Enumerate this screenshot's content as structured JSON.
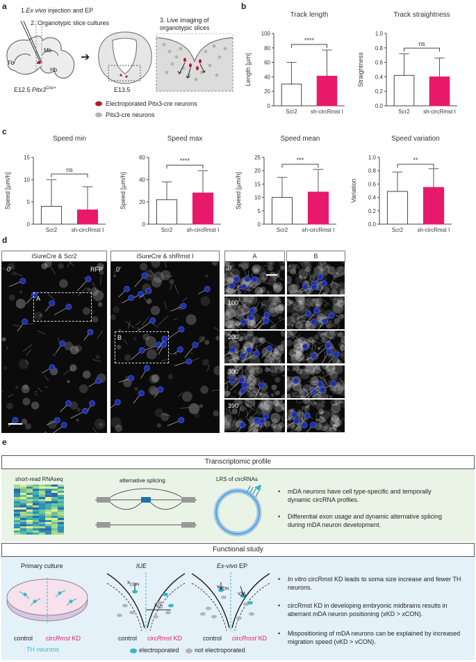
{
  "panels": {
    "a": "a",
    "b": "b",
    "c": "c",
    "d": "d",
    "e": "e"
  },
  "panel_a": {
    "step1_prefix": "1.",
    "step1_italic": "Ex vivo",
    "step1_rest": "injection and EP",
    "step2": "2. Organotypic slice cultures",
    "step3_line1": "3. Live imaging of",
    "step3_line2": "organotypic slices",
    "region_fb": "Fb",
    "region_mb": "Mb",
    "region_hb": "Hb",
    "age_e125": "E12.5",
    "genotype": "Pitx3",
    "genotype_sup": "Cre/+",
    "age_e135": "E13.5",
    "legend_red": "Electroporated Pitx3-cre neurons",
    "legend_grey": "Pitx3-cre neurons",
    "colors": {
      "red": "#b01c24",
      "grey": "#b4b4b4"
    }
  },
  "chart_data": [
    {
      "id": "track-length",
      "type": "bar",
      "title": "Track length",
      "ylabel": "Length [µm]",
      "ylim": [
        0,
        100
      ],
      "yticks": [
        0,
        20,
        40,
        60,
        80,
        100
      ],
      "categories": [
        "Scr2",
        "sh-circRmst I"
      ],
      "values": [
        30,
        41
      ],
      "errors": [
        30,
        36
      ],
      "significance": "****",
      "fill": [
        "#ffffff",
        "#e8196b"
      ]
    },
    {
      "id": "track-straightness",
      "type": "bar",
      "title": "Track straightness",
      "ylabel": "Straightness",
      "ylim": [
        0,
        1.0
      ],
      "yticks": [
        "0.0",
        "0.2",
        "0.4",
        "0.6",
        "0.8",
        "1.0"
      ],
      "categories": [
        "Scr2",
        "sh-circRmst I"
      ],
      "values": [
        0.42,
        0.4
      ],
      "errors": [
        0.3,
        0.26
      ],
      "significance": "ns",
      "fill": [
        "#ffffff",
        "#e8196b"
      ]
    },
    {
      "id": "speed-min",
      "type": "bar",
      "title": "Speed min",
      "ylabel": "Speed [µm/h]",
      "ylim": [
        0,
        15
      ],
      "yticks": [
        0,
        5,
        10,
        15
      ],
      "categories": [
        "Scr2",
        "sh-circRmst I"
      ],
      "values": [
        4,
        3.2
      ],
      "errors": [
        6,
        5.2
      ],
      "significance": "ns",
      "fill": [
        "#ffffff",
        "#e8196b"
      ]
    },
    {
      "id": "speed-max",
      "type": "bar",
      "title": "Speed max",
      "ylabel": "Speed [µm/h]",
      "ylim": [
        0,
        60
      ],
      "yticks": [
        0,
        20,
        40,
        60
      ],
      "categories": [
        "Scr2",
        "sh-circRmst I"
      ],
      "values": [
        22,
        28
      ],
      "errors": [
        16,
        20
      ],
      "significance": "****",
      "fill": [
        "#ffffff",
        "#e8196b"
      ]
    },
    {
      "id": "speed-mean",
      "type": "bar",
      "title": "Speed mean",
      "ylabel": "Speed [µm/h]",
      "ylim": [
        0,
        25
      ],
      "yticks": [
        0,
        5,
        10,
        15,
        20,
        25
      ],
      "categories": [
        "Scr2",
        "sh-circRmst I"
      ],
      "values": [
        10,
        12
      ],
      "errors": [
        7.5,
        8.5
      ],
      "significance": "***",
      "fill": [
        "#ffffff",
        "#e8196b"
      ]
    },
    {
      "id": "speed-variation",
      "type": "bar",
      "title": "Speed variation",
      "ylabel": "Variation",
      "ylim": [
        0,
        1.0
      ],
      "yticks": [
        "0.0",
        "0.2",
        "0.4",
        "0.6",
        "0.8",
        "1.0"
      ],
      "categories": [
        "Scr2",
        "sh-circRmst I"
      ],
      "values": [
        0.49,
        0.55
      ],
      "errors": [
        0.29,
        0.28
      ],
      "significance": "**",
      "fill": [
        "#ffffff",
        "#e8196b"
      ]
    }
  ],
  "panel_d": {
    "header1": "iSureCre & Scr2",
    "header2": "iSureCre & shRmst I",
    "header3": "A",
    "header4": "B",
    "time0": "0'",
    "rfp": "RFP",
    "box_a": "A",
    "box_b": "B",
    "times": [
      "0'",
      "100'",
      "200'",
      "300'",
      "390'"
    ]
  },
  "panel_e": {
    "transcriptomic_title": "Transcriptomic profile",
    "rnaseq": "short-read RNAseq",
    "alt_splicing": "alternative splicing",
    "lrs": "LRS of circRNAs",
    "t_bullet1": "mDA neurons have cell type-specific and temporally dynamic circRNA profiles.",
    "t_bullet2": "Differential exon usage and dynamic alternative splicing during mDA neuron development.",
    "functional_title": "Functional study",
    "primary_culture": "Primary culture",
    "iue": "IUE",
    "exvivo_italic": "Ex-vivo",
    "exvivo_rest": " EP",
    "control": "control",
    "circ_prefix": "circ",
    "rmst": "Rmst",
    "kd": " KD",
    "th_neurons": "TH neurons",
    "xcon": "x",
    "xcon_sub": "CON",
    "xkd": "x",
    "xkd_sub": "KD",
    "vcon": "v",
    "vcon_sub": "CON",
    "vkd": "v",
    "vkd_sub": "KD",
    "electroporated": "electroporated",
    "not_electroporated": "not electroporated",
    "f_b1_italic": "In vitro",
    "f_b1_rest": " circRmst KD leads to soma size increase and fewer TH neurons.",
    "f_b2": "circRmst KD in developing embryonic midbrains results in aberrant mDA neuron positioning (xKD > xCON).",
    "f_b3": "Mispositioning of mDA neurons can be explained by increased migration speed (vKD > vCON).",
    "colors": {
      "green_bg": "#e9f4e7",
      "blue_bg": "#e5f1f9",
      "teal": "#35b8c4",
      "pink": "#e8196b"
    }
  }
}
